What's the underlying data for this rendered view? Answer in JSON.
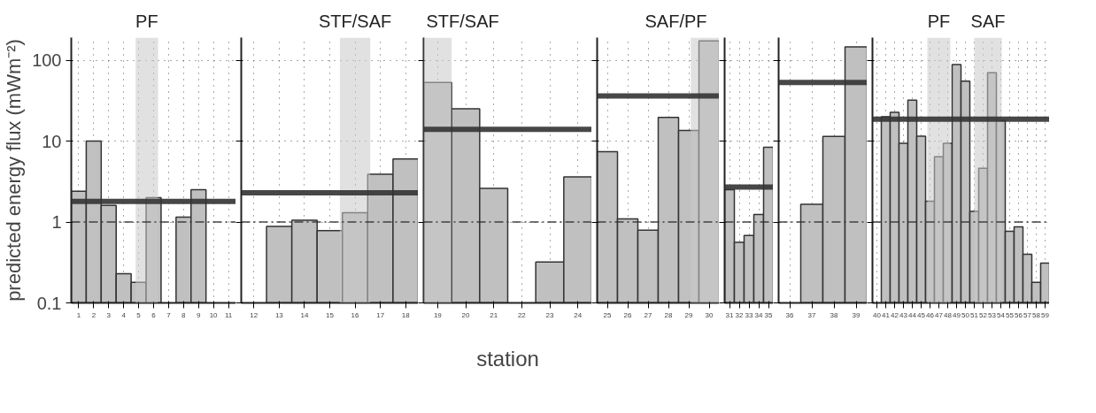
{
  "chart_data": [
    {
      "type": "bar",
      "ylabel": "predicted energy flux (mWm⁻²)",
      "log": true,
      "grid": true,
      "color": "#c0c0c0",
      "x": [
        1,
        2,
        3,
        4,
        5,
        6,
        8,
        9
      ],
      "values": [
        2.4,
        10,
        1.6,
        0.23,
        0.18,
        2.0,
        1.15,
        2.5
      ],
      "xlim": [
        0.5,
        11.5
      ],
      "xticks": [
        1,
        2,
        3,
        4,
        5,
        6,
        7,
        8,
        9,
        10,
        11
      ],
      "ylim": [
        0.1,
        190
      ],
      "yticks": [
        0.1,
        1,
        10,
        100
      ],
      "ref_lines": [
        {
          "axis": "y",
          "value": 1,
          "line_style": "dashed",
          "color": "#333333"
        },
        {
          "axis": "y",
          "value": 1.8,
          "color": "#333333"
        }
      ],
      "bands": [
        {
          "axis": "x",
          "from": 4.8,
          "to": 6.3,
          "label": "PF",
          "color": "#c8c8c8"
        }
      ]
    },
    {
      "type": "bar",
      "log": true,
      "grid": true,
      "tick_labels": "x",
      "color": "#c0c0c0",
      "x": [
        13,
        14,
        15,
        16,
        17,
        18
      ],
      "values": [
        0.88,
        1.05,
        0.78,
        1.3,
        3.9,
        6.0
      ],
      "xlim": [
        11.5,
        18.5
      ],
      "xticks": [
        12,
        13,
        14,
        15,
        16,
        17,
        18
      ],
      "ylim": [
        0.1,
        190
      ],
      "yticks": [
        0.1,
        1,
        10,
        100
      ],
      "ref_lines": [
        {
          "axis": "y",
          "value": 1,
          "line_style": "dashed",
          "color": "#333333"
        },
        {
          "axis": "y",
          "value": 2.3,
          "color": "#333333"
        }
      ],
      "bands": [
        {
          "axis": "x",
          "from": 15.4,
          "to": 16.6,
          "label": "STF/SAF",
          "color": "#c8c8c8"
        }
      ]
    },
    {
      "type": "bar",
      "xlabel": "station",
      "log": true,
      "grid": true,
      "tick_labels": "x",
      "color": "#c0c0c0",
      "x": [
        19,
        20,
        21,
        23,
        24
      ],
      "values": [
        53,
        25,
        2.6,
        0.32,
        3.6
      ],
      "xlim": [
        18.5,
        24.5
      ],
      "xticks": [
        19,
        20,
        21,
        22,
        23,
        24
      ],
      "ylim": [
        0.1,
        190
      ],
      "yticks": [
        0.1,
        1,
        10,
        100
      ],
      "ref_lines": [
        {
          "axis": "y",
          "value": 1,
          "line_style": "dashed",
          "color": "#333333"
        },
        {
          "axis": "y",
          "value": 14,
          "color": "#333333"
        }
      ],
      "bands": [
        {
          "axis": "x",
          "from": 18.5,
          "to": 19.5,
          "label": "STF/SAF",
          "color": "#c8c8c8"
        }
      ]
    },
    {
      "type": "bar",
      "log": true,
      "grid": true,
      "tick_labels": "x",
      "color": "#c0c0c0",
      "x": [
        25,
        26,
        27,
        28,
        29,
        30
      ],
      "values": [
        7.4,
        1.09,
        0.79,
        19.6,
        13.5,
        173
      ],
      "xlim": [
        24.5,
        30.5
      ],
      "xticks": [
        25,
        26,
        27,
        28,
        29,
        30
      ],
      "ylim": [
        0.1,
        190
      ],
      "yticks": [
        0.1,
        1,
        10,
        100
      ],
      "ref_lines": [
        {
          "axis": "y",
          "value": 1,
          "line_style": "dashed",
          "color": "#333333"
        },
        {
          "axis": "y",
          "value": 36,
          "color": "#333333"
        }
      ],
      "bands": [
        {
          "axis": "x",
          "from": 29.1,
          "to": 30.5,
          "label": "SAF/PF",
          "color": "#c8c8c8"
        }
      ]
    },
    {
      "type": "bar",
      "log": true,
      "grid": true,
      "tick_labels": "x",
      "color": "#c0c0c0",
      "x": [
        31,
        32,
        33,
        34,
        35
      ],
      "values": [
        2.5,
        0.56,
        0.68,
        1.24,
        8.4
      ],
      "xlim": [
        30.5,
        35.5
      ],
      "xticks": [
        31,
        32,
        33,
        34,
        35
      ],
      "ylim": [
        0.1,
        190
      ],
      "yticks": [
        0.1,
        1,
        10,
        100
      ],
      "ref_lines": [
        {
          "axis": "y",
          "value": 1,
          "line_style": "dashed",
          "color": "#333333"
        },
        {
          "axis": "y",
          "value": 2.7,
          "color": "#333333"
        }
      ]
    },
    {
      "type": "bar",
      "log": true,
      "grid": true,
      "tick_labels": "x",
      "color": "#c0c0c0",
      "x": [
        37,
        38,
        39
      ],
      "values": [
        1.65,
        11.4,
        146
      ],
      "xlim": [
        35.5,
        39.5
      ],
      "xticks": [
        36,
        37,
        38,
        39
      ],
      "ylim": [
        0.1,
        190
      ],
      "yticks": [
        0.1,
        1,
        10,
        100
      ],
      "ref_lines": [
        {
          "axis": "y",
          "value": 1,
          "line_style": "dashed",
          "color": "#333333"
        },
        {
          "axis": "y",
          "value": 53,
          "color": "#333333"
        }
      ]
    },
    {
      "type": "bar",
      "log": true,
      "grid": true,
      "tick_labels": "x",
      "color": "#c0c0c0",
      "x": [
        41,
        42,
        43,
        44,
        45,
        46,
        47,
        48,
        49,
        50,
        51,
        52,
        53,
        54,
        55,
        56,
        57,
        58,
        59
      ],
      "values": [
        20,
        22.6,
        9.4,
        32,
        11.5,
        1.81,
        6.4,
        9.4,
        88,
        55,
        1.35,
        4.6,
        70,
        18,
        0.77,
        0.87,
        0.4,
        0.18,
        0.31
      ],
      "xlim": [
        39.5,
        59.5
      ],
      "xticks": [
        40,
        41,
        42,
        43,
        44,
        45,
        46,
        47,
        48,
        49,
        50,
        51,
        52,
        53,
        54,
        55,
        56,
        57,
        58,
        59
      ],
      "ylim": [
        0.1,
        190
      ],
      "yticks": [
        0.1,
        1,
        10,
        100
      ],
      "ref_lines": [
        {
          "axis": "y",
          "value": 1,
          "line_style": "dashed",
          "color": "#333333"
        },
        {
          "axis": "y",
          "value": 18.7,
          "color": "#333333"
        }
      ],
      "bands": [
        {
          "axis": "x",
          "from": 45.7,
          "to": 48.3,
          "label": "PF",
          "color": "#c8c8c8"
        },
        {
          "axis": "x",
          "from": 51.0,
          "to": 54.1,
          "label": "SAF",
          "color": "#c8c8c8"
        }
      ]
    }
  ]
}
